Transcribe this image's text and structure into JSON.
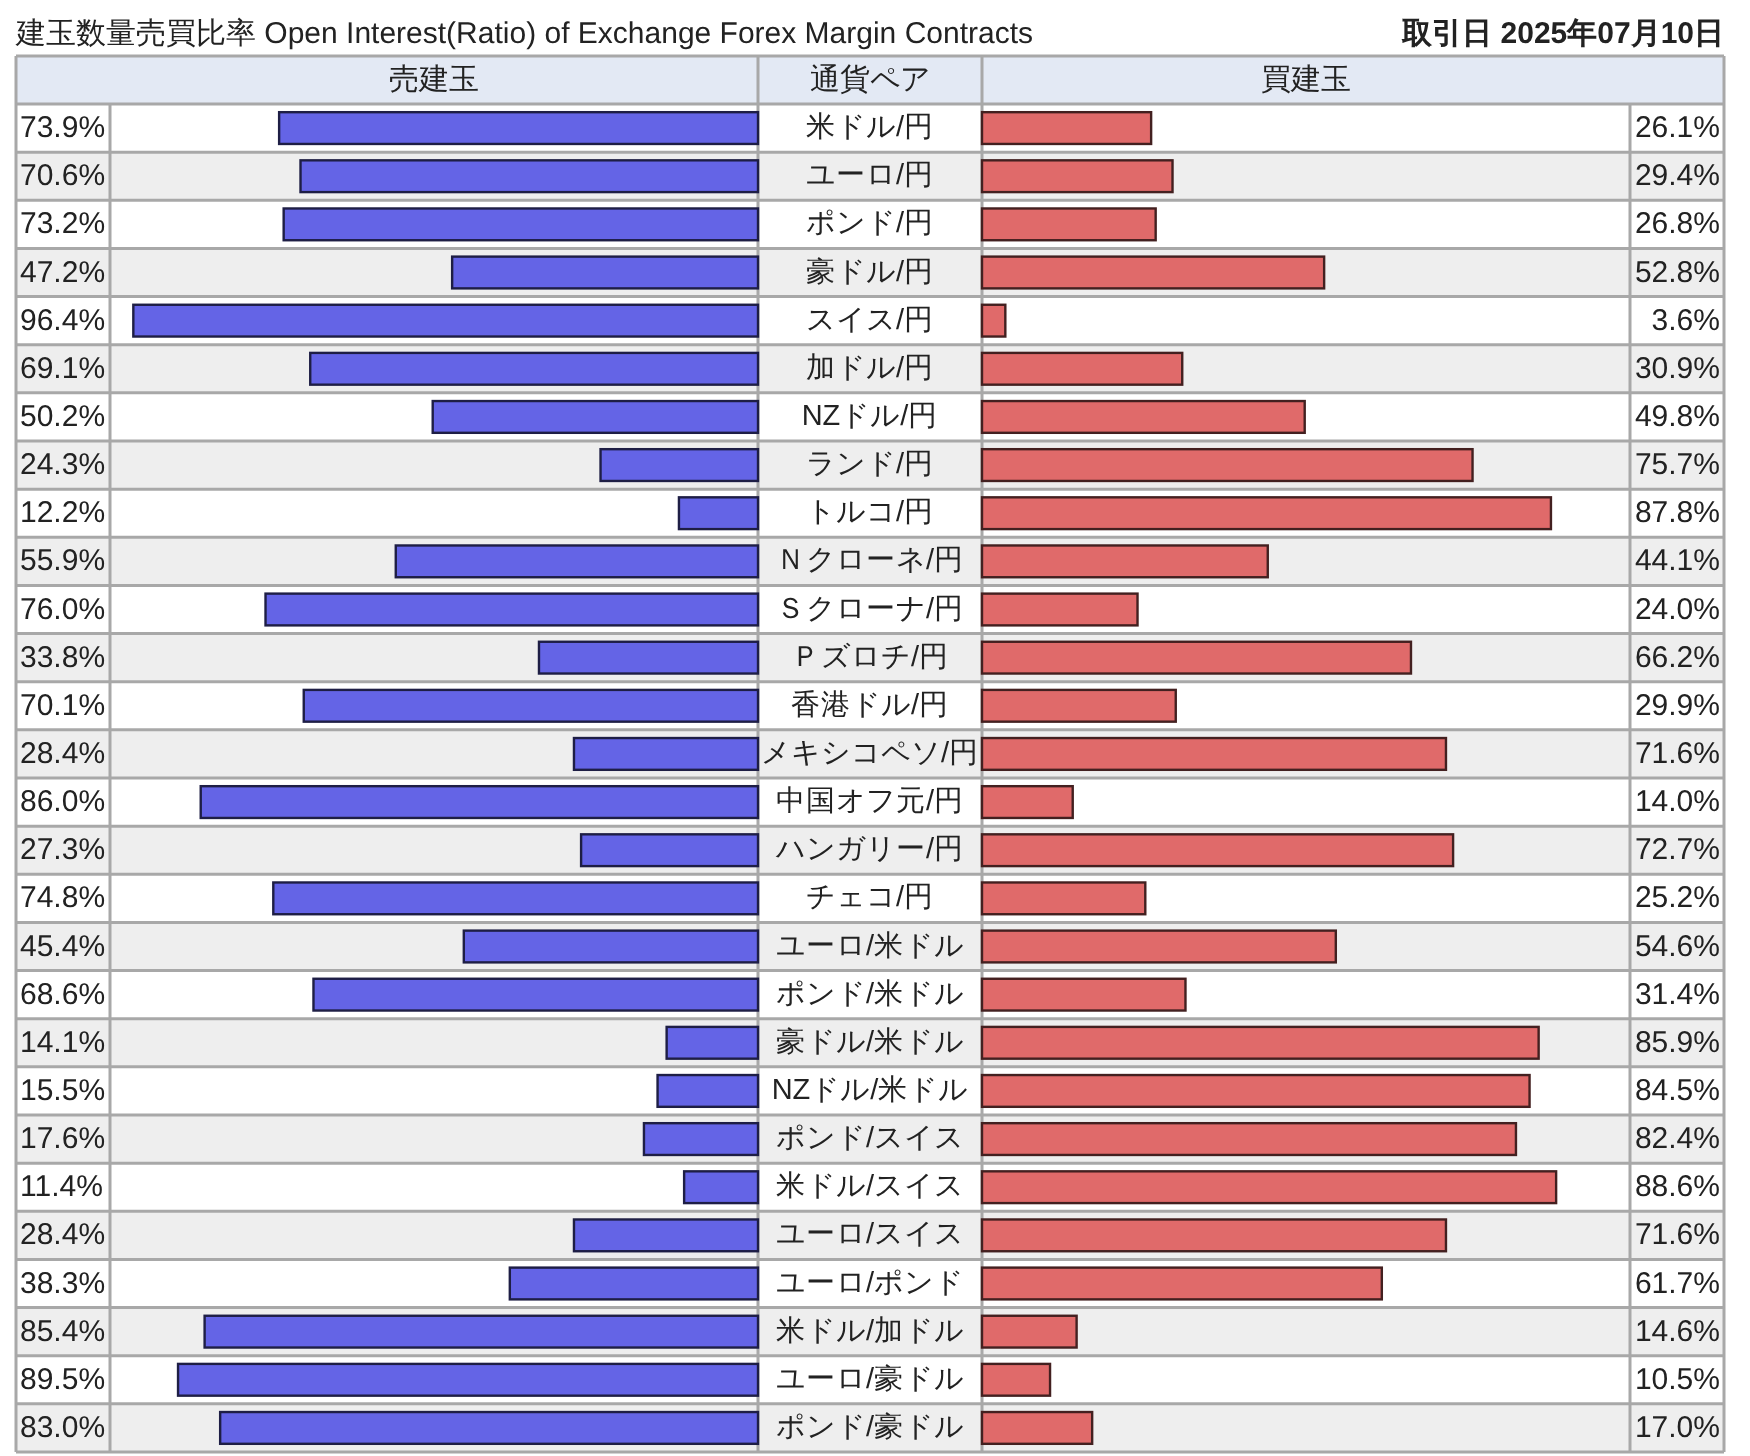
{
  "chart_data": [
    {
      "type": "bar",
      "orientation": "horizontal",
      "title": "建玉数量売買比率 Open Interest(Ratio) of Exchange Forex Margin Contracts",
      "xlabel": "売建玉",
      "ylabel": "通貨ペア",
      "categories": [
        "米ドル/円",
        "ユーロ/円",
        "ポンド/円",
        "豪ドル/円",
        "スイス/円",
        "加ドル/円",
        "NZドル/円",
        "ランド/円",
        "トルコ/円",
        "Ｎクローネ/円",
        "Ｓクローナ/円",
        "Ｐズロチ/円",
        "香港ドル/円",
        "メキシコペソ/円",
        "中国オフ元/円",
        "ハンガリー/円",
        "チェコ/円",
        "ユーロ/米ドル",
        "ポンド/米ドル",
        "豪ドル/米ドル",
        "NZドル/米ドル",
        "ポンド/スイス",
        "米ドル/スイス",
        "ユーロ/スイス",
        "ユーロ/ポンド",
        "米ドル/加ドル",
        "ユーロ/豪ドル",
        "ポンド/豪ドル"
      ],
      "values": [
        73.9,
        70.6,
        73.2,
        47.2,
        96.4,
        69.1,
        50.2,
        24.3,
        12.2,
        55.9,
        76.0,
        33.8,
        70.1,
        28.4,
        86.0,
        27.3,
        74.8,
        45.4,
        68.6,
        14.1,
        15.5,
        17.6,
        11.4,
        28.4,
        38.3,
        85.4,
        89.5,
        83.0
      ],
      "value_labels": [
        "73.9%",
        "70.6%",
        "73.2%",
        "47.2%",
        "96.4%",
        "69.1%",
        "50.2%",
        "24.3%",
        "12.2%",
        "55.9%",
        "76.0%",
        "33.8%",
        "70.1%",
        "28.4%",
        "86.0%",
        "27.3%",
        "74.8%",
        "45.4%",
        "68.6%",
        "14.1%",
        "15.5%",
        "17.6%",
        "11.4%",
        "28.4%",
        "38.3%",
        "85.4%",
        "89.5%",
        "83.0%"
      ],
      "color": "#6464e6",
      "xlim": [
        100,
        0
      ],
      "grid": "y"
    },
    {
      "type": "bar",
      "orientation": "horizontal",
      "xlabel": "買建玉",
      "annotations": [
        "取引日 2025年07月10日"
      ],
      "categories": [
        "米ドル/円",
        "ユーロ/円",
        "ポンド/円",
        "豪ドル/円",
        "スイス/円",
        "加ドル/円",
        "NZドル/円",
        "ランド/円",
        "トルコ/円",
        "Ｎクローネ/円",
        "Ｓクローナ/円",
        "Ｐズロチ/円",
        "香港ドル/円",
        "メキシコペソ/円",
        "中国オフ元/円",
        "ハンガリー/円",
        "チェコ/円",
        "ユーロ/米ドル",
        "ポンド/米ドル",
        "豪ドル/米ドル",
        "NZドル/米ドル",
        "ポンド/スイス",
        "米ドル/スイス",
        "ユーロ/スイス",
        "ユーロ/ポンド",
        "米ドル/加ドル",
        "ユーロ/豪ドル",
        "ポンド/豪ドル"
      ],
      "values": [
        26.1,
        29.4,
        26.8,
        52.8,
        3.6,
        30.9,
        49.8,
        75.7,
        87.8,
        44.1,
        24.0,
        66.2,
        29.9,
        71.6,
        14.0,
        72.7,
        25.2,
        54.6,
        31.4,
        85.9,
        84.5,
        82.4,
        88.6,
        71.6,
        61.7,
        14.6,
        10.5,
        17.0
      ],
      "value_labels": [
        "26.1%",
        "29.4%",
        "26.8%",
        "52.8%",
        "3.6%",
        "30.9%",
        "49.8%",
        "75.7%",
        "87.8%",
        "44.1%",
        "24.0%",
        "66.2%",
        "29.9%",
        "71.6%",
        "14.0%",
        "72.7%",
        "25.2%",
        "54.6%",
        "31.4%",
        "85.9%",
        "84.5%",
        "82.4%",
        "88.6%",
        "71.6%",
        "61.7%",
        "14.6%",
        "10.5%",
        "17.0%"
      ],
      "color": "#e06a6a",
      "xlim": [
        0,
        100
      ],
      "grid": "y",
      "tick_labels": false
    }
  ]
}
